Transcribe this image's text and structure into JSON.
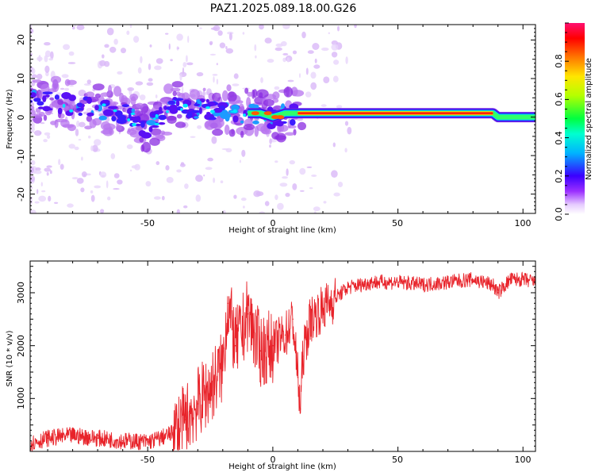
{
  "title": "PAZ1.2025.089.18.00.G26",
  "chart_data": [
    {
      "type": "heatmap",
      "title": "PAZ1.2025.089.18.00.G26",
      "xlabel": "Height of straight line (km)",
      "ylabel": "Frequency (Hz)",
      "xlim": [
        -97,
        105
      ],
      "ylim": [
        -25,
        24
      ],
      "x_ticks": [
        -50,
        0,
        50,
        100
      ],
      "y_ticks": [
        -20,
        -10,
        0,
        10,
        20
      ],
      "x_tick_labels": [
        "-50",
        "0",
        "50",
        "100"
      ],
      "y_tick_labels": [
        "-20",
        "-10",
        "0",
        "10",
        "20"
      ],
      "colorbar": {
        "label": "Normalized spectral amplitude",
        "range": [
          0,
          1
        ],
        "ticks": [
          0.0,
          0.2,
          0.4,
          0.6,
          0.8
        ],
        "tick_labels": [
          "0.0",
          "0.2",
          "0.4",
          "0.6",
          "0.8"
        ]
      },
      "dominant_frequency_track": {
        "x": [
          -97,
          -80,
          -70,
          -60,
          -50,
          -40,
          -30,
          -20,
          -10,
          -5,
          0,
          5,
          10,
          20,
          50,
          88,
          90,
          95,
          105
        ],
        "y": [
          5,
          3,
          2,
          1,
          -3,
          3,
          2,
          2,
          1,
          1,
          0,
          1,
          1,
          1,
          1,
          1,
          0,
          0,
          0
        ]
      }
    },
    {
      "type": "line",
      "xlabel": "Height of straight line (km)",
      "ylabel": "SNR (10 * v/v)",
      "xlim": [
        -97,
        105
      ],
      "ylim": [
        0,
        3600
      ],
      "x_ticks": [
        -50,
        0,
        50,
        100
      ],
      "y_ticks": [
        1000,
        2000,
        3000
      ],
      "x_tick_labels": [
        "-50",
        "0",
        "50",
        "100"
      ],
      "y_tick_labels": [
        "1000",
        "2000",
        "3000"
      ],
      "series": [
        {
          "name": "SNR",
          "color": "#e8232a",
          "x": [
            -97,
            -90,
            -80,
            -70,
            -60,
            -50,
            -45,
            -40,
            -35,
            -30,
            -25,
            -20,
            -18,
            -15,
            -12,
            -10,
            -5,
            0,
            5,
            8,
            10,
            11,
            12,
            15,
            20,
            25,
            30,
            35,
            40,
            50,
            60,
            70,
            80,
            88,
            90,
            95,
            100,
            105
          ],
          "y": [
            150,
            250,
            300,
            250,
            200,
            180,
            250,
            350,
            600,
            900,
            1200,
            1600,
            2800,
            2000,
            2300,
            2600,
            1900,
            2000,
            2200,
            2500,
            1400,
            800,
            1800,
            2500,
            2700,
            2900,
            3100,
            3150,
            3200,
            3200,
            3150,
            3200,
            3250,
            3150,
            3000,
            3250,
            3250,
            3200
          ]
        }
      ]
    }
  ]
}
